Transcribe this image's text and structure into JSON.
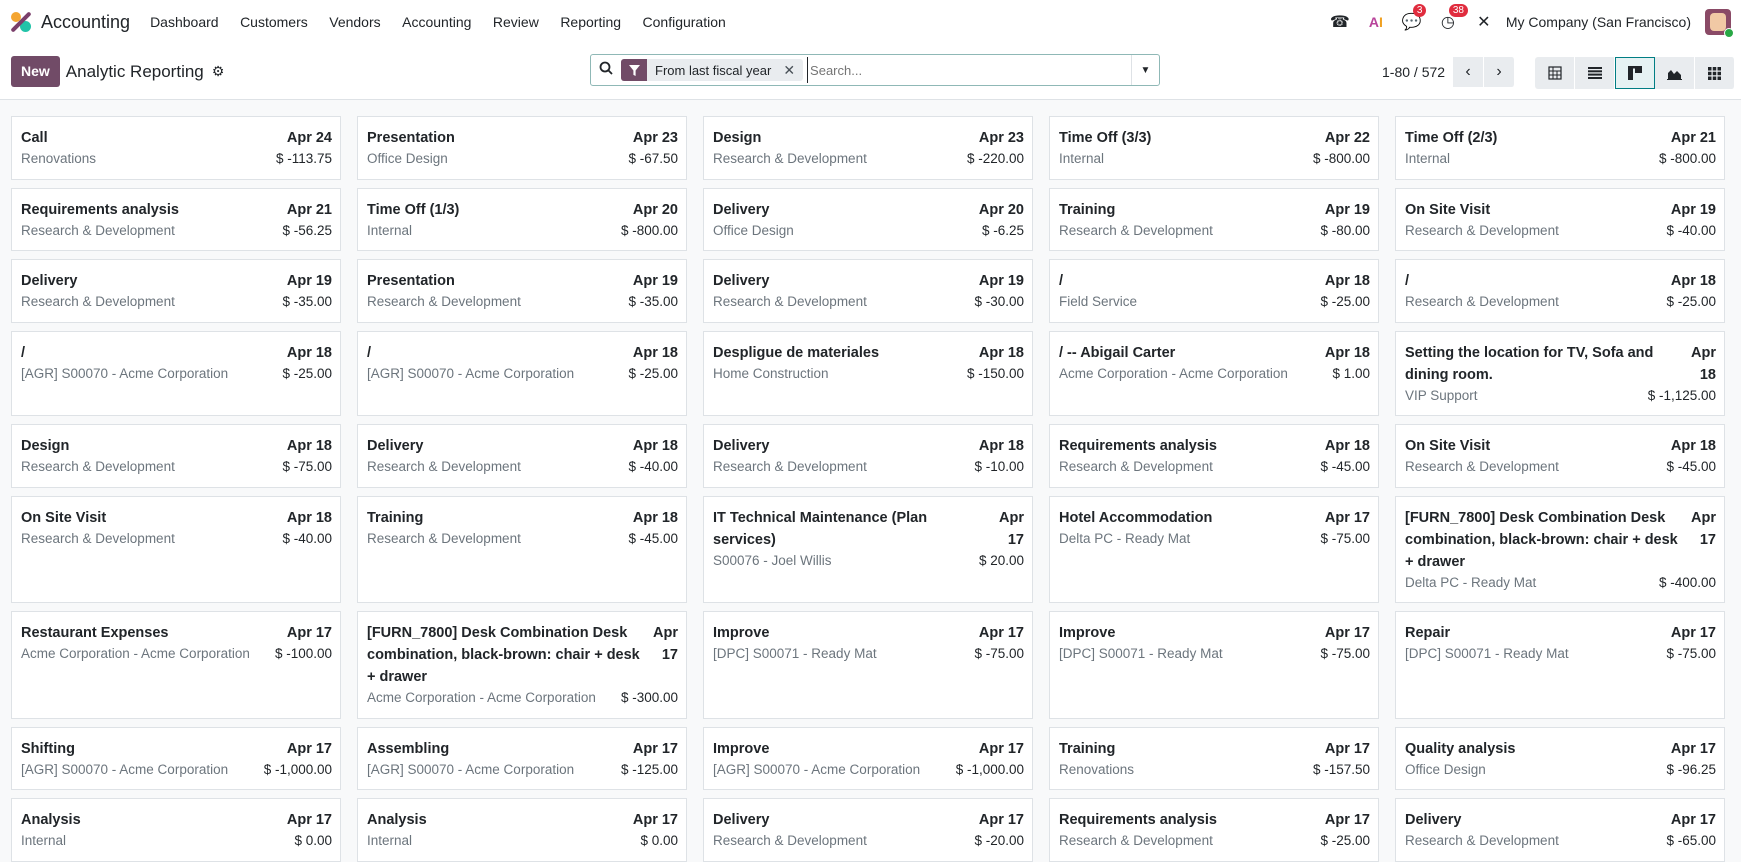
{
  "navbar": {
    "app_name": "Accounting",
    "menu": [
      "Dashboard",
      "Customers",
      "Vendors",
      "Accounting",
      "Review",
      "Reporting",
      "Configuration"
    ],
    "messages_badge": "3",
    "activities_badge": "38",
    "company": "My Company (San Francisco)"
  },
  "control": {
    "new_label": "New",
    "title": "Analytic Reporting",
    "facet_label": "From last fiscal year",
    "search_placeholder": "Search...",
    "pager": "1-80 / 572",
    "views": [
      "pivot",
      "list",
      "kanban",
      "graph",
      "grid"
    ],
    "active_view": "kanban"
  },
  "cards": [
    {
      "title": "Call",
      "date": "Apr 24",
      "sub": "Renovations",
      "amount": "$ -113.75"
    },
    {
      "title": "Presentation",
      "date": "Apr 23",
      "sub": "Office Design",
      "amount": "$ -67.50"
    },
    {
      "title": "Design",
      "date": "Apr 23",
      "sub": "Research & Development",
      "amount": "$ -220.00"
    },
    {
      "title": "Time Off (3/3)",
      "date": "Apr 22",
      "sub": "Internal",
      "amount": "$ -800.00"
    },
    {
      "title": "Time Off (2/3)",
      "date": "Apr 21",
      "sub": "Internal",
      "amount": "$ -800.00"
    },
    {
      "title": "Requirements analysis",
      "date": "Apr 21",
      "sub": "Research & Development",
      "amount": "$ -56.25"
    },
    {
      "title": "Time Off (1/3)",
      "date": "Apr 20",
      "sub": "Internal",
      "amount": "$ -800.00"
    },
    {
      "title": "Delivery",
      "date": "Apr 20",
      "sub": "Office Design",
      "amount": "$ -6.25"
    },
    {
      "title": "Training",
      "date": "Apr 19",
      "sub": "Research & Development",
      "amount": "$ -80.00"
    },
    {
      "title": "On Site Visit",
      "date": "Apr 19",
      "sub": "Research & Development",
      "amount": "$ -40.00"
    },
    {
      "title": "Delivery",
      "date": "Apr 19",
      "sub": "Research & Development",
      "amount": "$ -35.00"
    },
    {
      "title": "Presentation",
      "date": "Apr 19",
      "sub": "Research & Development",
      "amount": "$ -35.00"
    },
    {
      "title": "Delivery",
      "date": "Apr 19",
      "sub": "Research & Development",
      "amount": "$ -30.00"
    },
    {
      "title": "/",
      "date": "Apr 18",
      "sub": "Field Service",
      "amount": "$ -25.00"
    },
    {
      "title": "/",
      "date": "Apr 18",
      "sub": "Research & Development",
      "amount": "$ -25.00"
    },
    {
      "title": "/",
      "date": "Apr 18",
      "sub": "[AGR] S00070 - Acme Corporation",
      "amount": "$ -25.00"
    },
    {
      "title": "/",
      "date": "Apr 18",
      "sub": "[AGR] S00070 - Acme Corporation",
      "amount": "$ -25.00"
    },
    {
      "title": "Despligue de materiales",
      "date": "Apr 18",
      "sub": "Home Construction",
      "amount": "$ -150.00"
    },
    {
      "title": "/ -- Abigail Carter",
      "date": "Apr 18",
      "sub": "Acme Corporation - Acme Corporation",
      "amount": "$ 1.00"
    },
    {
      "title": "Setting the location for TV, Sofa and dining room.",
      "date": "Apr 18",
      "sub": "VIP Support",
      "amount": "$ -1,125.00"
    },
    {
      "title": "Design",
      "date": "Apr 18",
      "sub": "Research & Development",
      "amount": "$ -75.00"
    },
    {
      "title": "Delivery",
      "date": "Apr 18",
      "sub": "Research & Development",
      "amount": "$ -40.00"
    },
    {
      "title": "Delivery",
      "date": "Apr 18",
      "sub": "Research & Development",
      "amount": "$ -10.00"
    },
    {
      "title": "Requirements analysis",
      "date": "Apr 18",
      "sub": "Research & Development",
      "amount": "$ -45.00"
    },
    {
      "title": "On Site Visit",
      "date": "Apr 18",
      "sub": "Research & Development",
      "amount": "$ -45.00"
    },
    {
      "title": "On Site Visit",
      "date": "Apr 18",
      "sub": "Research & Development",
      "amount": "$ -40.00"
    },
    {
      "title": "Training",
      "date": "Apr 18",
      "sub": "Research & Development",
      "amount": "$ -45.00"
    },
    {
      "title": "IT Technical Maintenance (Plan services)",
      "date": "Apr 17",
      "sub": "S00076 - Joel Willis",
      "amount": "$ 20.00"
    },
    {
      "title": "Hotel Accommodation",
      "date": "Apr 17",
      "sub": "Delta PC - Ready Mat",
      "amount": "$ -75.00"
    },
    {
      "title": "[FURN_7800] Desk Combination Desk combination, black-brown: chair + desk + drawer",
      "date": "Apr 17",
      "sub": "Delta PC - Ready Mat",
      "amount": "$ -400.00"
    },
    {
      "title": "Restaurant Expenses",
      "date": "Apr 17",
      "sub": "Acme Corporation - Acme Corporation",
      "amount": "$ -100.00"
    },
    {
      "title": "[FURN_7800] Desk Combination Desk combination, black-brown: chair + desk + drawer",
      "date": "Apr 17",
      "sub": "Acme Corporation - Acme Corporation",
      "amount": "$ -300.00"
    },
    {
      "title": "Improve",
      "date": "Apr 17",
      "sub": "[DPC] S00071 - Ready Mat",
      "amount": "$ -75.00"
    },
    {
      "title": "Improve",
      "date": "Apr 17",
      "sub": "[DPC] S00071 - Ready Mat",
      "amount": "$ -75.00"
    },
    {
      "title": "Repair",
      "date": "Apr 17",
      "sub": "[DPC] S00071 - Ready Mat",
      "amount": "$ -75.00"
    },
    {
      "title": "Shifting",
      "date": "Apr 17",
      "sub": "[AGR] S00070 - Acme Corporation",
      "amount": "$ -1,000.00"
    },
    {
      "title": "Assembling",
      "date": "Apr 17",
      "sub": "[AGR] S00070 - Acme Corporation",
      "amount": "$ -125.00"
    },
    {
      "title": "Improve",
      "date": "Apr 17",
      "sub": "[AGR] S00070 - Acme Corporation",
      "amount": "$ -1,000.00"
    },
    {
      "title": "Training",
      "date": "Apr 17",
      "sub": "Renovations",
      "amount": "$ -157.50"
    },
    {
      "title": "Quality analysis",
      "date": "Apr 17",
      "sub": "Office Design",
      "amount": "$ -96.25"
    },
    {
      "title": "Analysis",
      "date": "Apr 17",
      "sub": "Internal",
      "amount": "$ 0.00"
    },
    {
      "title": "Analysis",
      "date": "Apr 17",
      "sub": "Internal",
      "amount": "$ 0.00"
    },
    {
      "title": "Delivery",
      "date": "Apr 17",
      "sub": "Research & Development",
      "amount": "$ -20.00"
    },
    {
      "title": "Requirements analysis",
      "date": "Apr 17",
      "sub": "Research & Development",
      "amount": "$ -25.00"
    },
    {
      "title": "Delivery",
      "date": "Apr 17",
      "sub": "Research & Development",
      "amount": "$ -65.00"
    }
  ],
  "colors": {
    "brand": "#714b67",
    "accent": "#017e84",
    "badge": "#e02c3e"
  }
}
